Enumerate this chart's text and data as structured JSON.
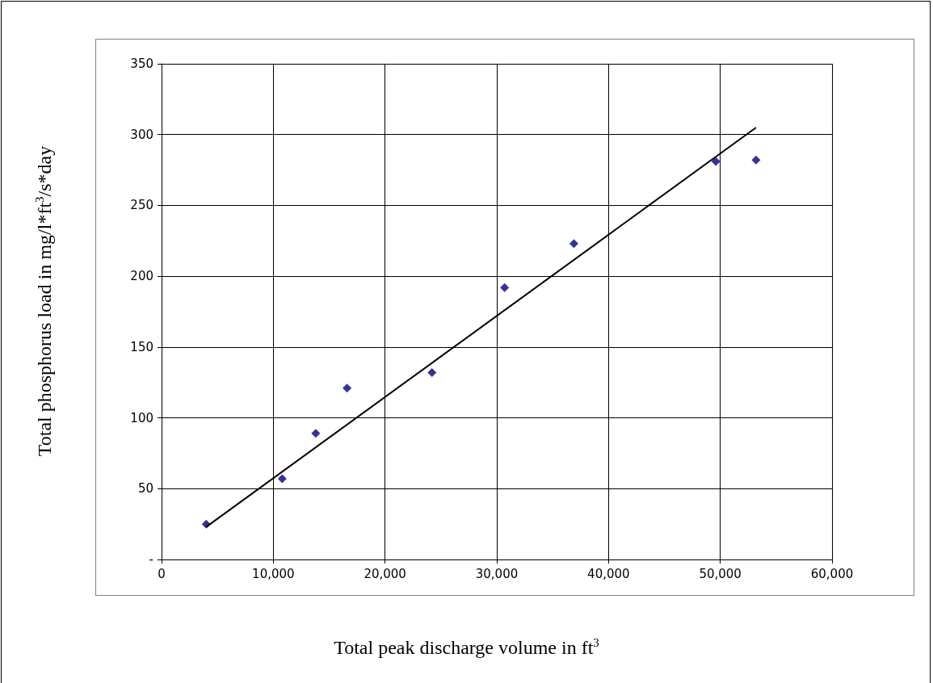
{
  "chart_data": {
    "type": "scatter",
    "xlabel": "Total peak discharge volume in ft$^{3}$",
    "ylabel": "Total phosphorus load in mg/l*ft$^{3}$/s*day",
    "xlim": [
      0,
      60000
    ],
    "xticks": [
      0,
      {
        "value": 10000,
        "label": "10,000"
      },
      {
        "value": 20000,
        "label": "20,000"
      },
      {
        "value": 30000,
        "label": "30,000"
      },
      {
        "value": 40000,
        "label": "40,000"
      },
      {
        "value": 50000,
        "label": "50,000"
      },
      {
        "value": 60000,
        "label": "60,000"
      }
    ],
    "ylim": [
      0,
      350
    ],
    "yticks": [
      {
        "value": 0,
        "label": "-"
      },
      50,
      100,
      150,
      200,
      250,
      300,
      350
    ],
    "grid": true,
    "series": [
      {
        "color": "#000080",
        "marker": "diamond",
        "x": [
          4000,
          10800,
          13800,
          16600,
          24200,
          30700,
          36900,
          49600,
          53200
        ],
        "values": [
          25,
          57,
          89,
          121,
          132,
          192,
          223,
          281,
          282
        ]
      },
      {
        "type": "line",
        "color": "#000000",
        "marker": "none",
        "line_style": "solid",
        "x": [
          4000,
          53200
        ],
        "values": [
          23,
          305
        ]
      }
    ]
  }
}
